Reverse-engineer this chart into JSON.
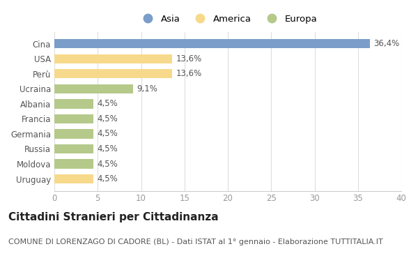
{
  "categories": [
    "Cina",
    "USA",
    "Perù",
    "Ucraina",
    "Albania",
    "Francia",
    "Germania",
    "Russia",
    "Moldova",
    "Uruguay"
  ],
  "values": [
    36.4,
    13.6,
    13.6,
    9.1,
    4.5,
    4.5,
    4.5,
    4.5,
    4.5,
    4.5
  ],
  "labels": [
    "36,4%",
    "13,6%",
    "13,6%",
    "9,1%",
    "4,5%",
    "4,5%",
    "4,5%",
    "4,5%",
    "4,5%",
    "4,5%"
  ],
  "colors": [
    "#7b9dc9",
    "#f7d98b",
    "#f7d98b",
    "#b5c98a",
    "#b5c98a",
    "#b5c98a",
    "#b5c98a",
    "#b5c98a",
    "#b5c98a",
    "#f7d98b"
  ],
  "legend_labels": [
    "Asia",
    "America",
    "Europa"
  ],
  "legend_colors": [
    "#7b9dc9",
    "#f7d98b",
    "#b5c98a"
  ],
  "xlim": [
    0,
    40
  ],
  "xticks": [
    0,
    5,
    10,
    15,
    20,
    25,
    30,
    35,
    40
  ],
  "title": "Cittadini Stranieri per Cittadinanza",
  "subtitle": "COMUNE DI LORENZAGO DI CADORE (BL) - Dati ISTAT al 1° gennaio - Elaborazione TUTTITALIA.IT",
  "bg_color": "#ffffff",
  "plot_bg_color": "#ffffff",
  "bar_height": 0.62,
  "title_fontsize": 11,
  "subtitle_fontsize": 8,
  "label_fontsize": 8.5,
  "tick_fontsize": 8.5,
  "legend_fontsize": 9.5
}
